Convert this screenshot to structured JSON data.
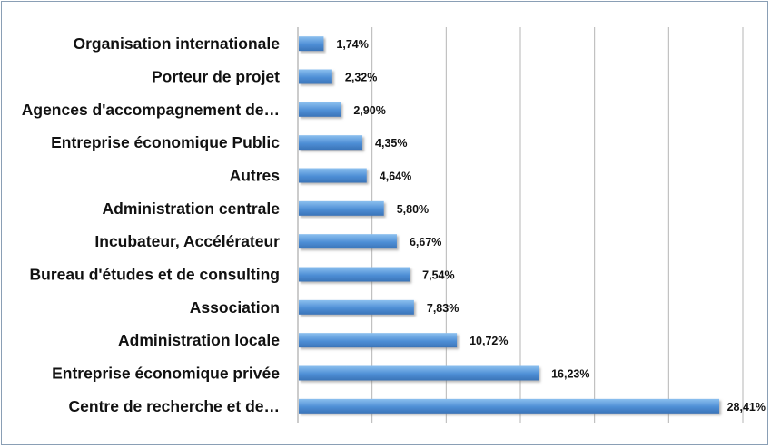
{
  "chart_data": {
    "type": "bar",
    "orientation": "horizontal",
    "categories": [
      "Organisation internationale",
      "Porteur de projet",
      "Agences d'accompagnement de…",
      "Entreprise économique Public",
      "Autres",
      "Administration centrale",
      "Incubateur, Accélérateur",
      "Bureau d'études et de consulting",
      "Association",
      "Administration locale",
      "Entreprise économique privée",
      "Centre de recherche et de…"
    ],
    "values": [
      1.74,
      2.32,
      2.9,
      4.35,
      4.64,
      5.8,
      6.67,
      7.54,
      7.83,
      10.72,
      16.23,
      28.41
    ],
    "value_labels": [
      "1,74%",
      "2,32%",
      "2,90%",
      "4,35%",
      "4,64%",
      "5,80%",
      "6,67%",
      "7,54%",
      "7,83%",
      "10,72%",
      "16,23%",
      "28,41%"
    ],
    "title": "",
    "xlabel": "",
    "ylabel": "",
    "xlim": [
      0,
      30
    ],
    "grid": true,
    "gridline_values": [
      5,
      10,
      15,
      20,
      25,
      30
    ],
    "legend": "none",
    "bar_color": "#4f8fd6",
    "grid_color": "#b5b5b5"
  }
}
